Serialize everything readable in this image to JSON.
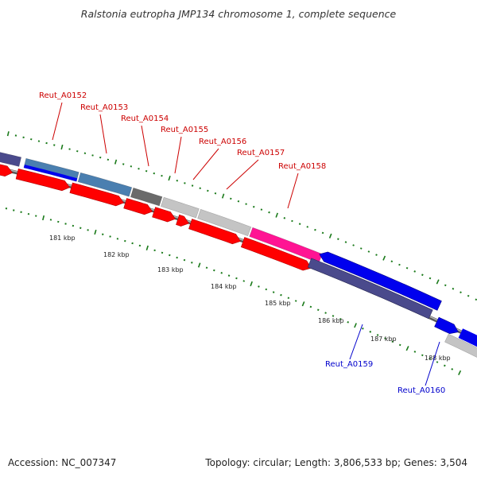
{
  "title": "Ralstonia eutropha JMP134 chromosome 1, complete sequence",
  "accession": "Accession: NC_007347",
  "summary": "Topology: circular; Length: 3,806,533 bp; Genes: 3,504",
  "colors": {
    "red_gene": "#ff0000",
    "blue_gene": "#0000ee",
    "purple_gene": "#4a4a8c",
    "steel_gene": "#4a7fb0",
    "dark_gray_gene": "#6a6a6a",
    "light_gray_gene": "#c4c4c4",
    "pink_gene": "#ff1493",
    "backbone": "#8a8a8a",
    "tick": "#1a7a1a",
    "label_red": "#cc0000",
    "label_blue": "#0000cc"
  },
  "kbp_labels": [
    "181 kbp",
    "182 kbp",
    "183 kbp",
    "184 kbp",
    "185 kbp",
    "186 kbp",
    "187 kbp",
    "188 kbp"
  ],
  "gene_labels": [
    {
      "text": "Reut_A0152",
      "color": "red"
    },
    {
      "text": "Reut_A0153",
      "color": "red"
    },
    {
      "text": "Reut_A0154",
      "color": "red"
    },
    {
      "text": "Reut_A0155",
      "color": "red"
    },
    {
      "text": "Reut_A0156",
      "color": "red"
    },
    {
      "text": "Reut_A0157",
      "color": "red"
    },
    {
      "text": "Reut_A0158",
      "color": "red"
    },
    {
      "text": "Reut_A0159",
      "color": "blue"
    },
    {
      "text": "Reut_A0160",
      "color": "blue"
    }
  ]
}
